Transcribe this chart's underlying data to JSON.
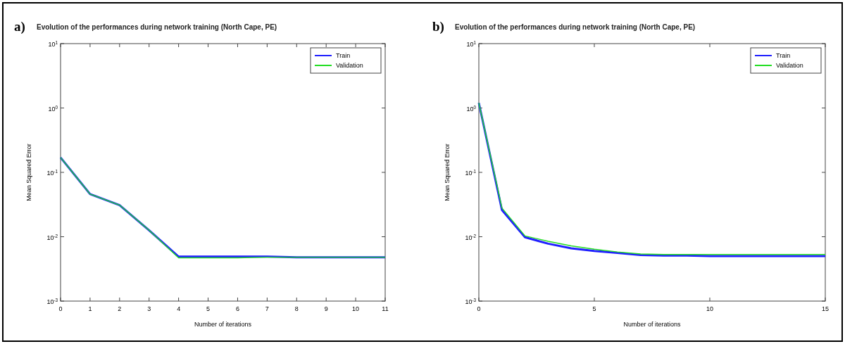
{
  "chart_data": [
    {
      "type": "line",
      "title": "Evolution of the performances during network training (North Cape, PE)",
      "xlabel": "Number of iterations",
      "ylabel": "Mean Squared Error",
      "annotations": [
        "a)"
      ],
      "log": "y",
      "legend": "top right",
      "x": [
        0,
        1,
        2,
        3,
        4,
        5,
        6,
        7,
        8,
        9,
        10,
        11
      ],
      "xlim": [
        0,
        11
      ],
      "xticks": [
        0,
        1,
        2,
        3,
        4,
        5,
        6,
        7,
        8,
        9,
        10,
        11
      ],
      "ylim": [
        0.001,
        10
      ],
      "yticks": [
        {
          "value": 10,
          "label": "10$^{1}$"
        },
        {
          "value": 1,
          "label": "10$^{0}$"
        },
        {
          "value": 0.1,
          "label": "10$^{-1}$"
        },
        {
          "value": 0.01,
          "label": "10$^{-2}$"
        },
        {
          "value": 0.001,
          "label": "10$^{-3}$"
        }
      ],
      "series": [
        {
          "name": "Train",
          "color": "#2020ff",
          "values": [
            0.17,
            0.046,
            0.031,
            0.0126,
            0.0049,
            0.0049,
            0.0049,
            0.0049,
            0.0048,
            0.0048,
            0.0048,
            0.0048
          ]
        },
        {
          "name": "Validation",
          "color": "#22dd22",
          "values": [
            0.17,
            0.046,
            0.031,
            0.0126,
            0.0047,
            0.0047,
            0.0047,
            0.0048,
            0.0048,
            0.0048,
            0.0048,
            0.0048
          ]
        }
      ]
    },
    {
      "type": "line",
      "title": "Evolution of the performances during network training (North Cape, PE)",
      "xlabel": "Number of iterations",
      "ylabel": "Mean Squared Error",
      "annotations": [
        "b)"
      ],
      "log": "y",
      "legend": "top right",
      "x": [
        0,
        1,
        2,
        3,
        4,
        5,
        6,
        7,
        8,
        9,
        10,
        11,
        12,
        13,
        14,
        15
      ],
      "xlim": [
        0,
        15
      ],
      "xticks": [
        0,
        5,
        10,
        15
      ],
      "ylim": [
        0.001,
        10
      ],
      "yticks": [
        {
          "value": 10,
          "label": "10$^{1}$"
        },
        {
          "value": 1,
          "label": "10$^{0}$"
        },
        {
          "value": 0.1,
          "label": "10$^{-1}$"
        },
        {
          "value": 0.01,
          "label": "10$^{-2}$"
        },
        {
          "value": 0.001,
          "label": "10$^{-3}$"
        }
      ],
      "series": [
        {
          "name": "Train",
          "color": "#2020ff",
          "values": [
            1.2,
            0.026,
            0.0098,
            0.0078,
            0.0066,
            0.006,
            0.0056,
            0.0052,
            0.0051,
            0.0051,
            0.005,
            0.005,
            0.005,
            0.005,
            0.005,
            0.005
          ]
        },
        {
          "name": "Validation",
          "color": "#22dd22",
          "values": [
            1.2,
            0.028,
            0.0103,
            0.0085,
            0.0072,
            0.0064,
            0.0058,
            0.0054,
            0.0053,
            0.0053,
            0.0053,
            0.0053,
            0.0053,
            0.0053,
            0.0053,
            0.0053
          ]
        }
      ]
    }
  ]
}
